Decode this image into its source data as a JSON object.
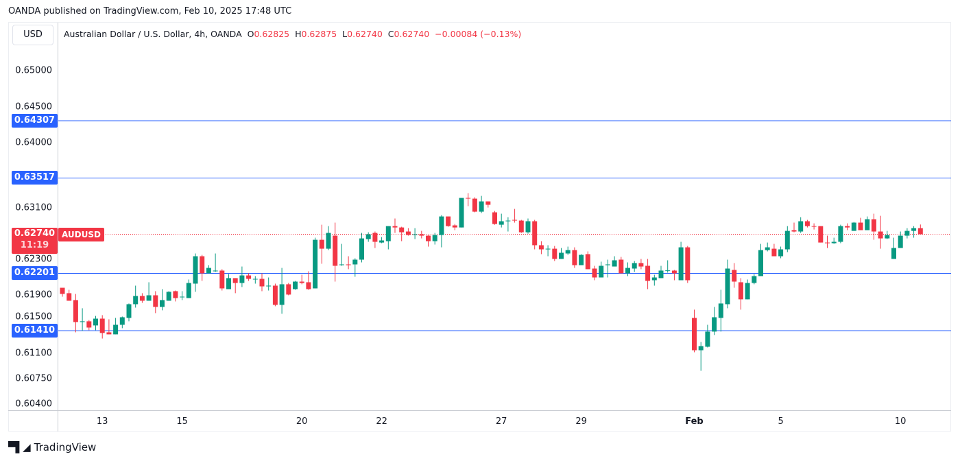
{
  "header": {
    "published": "OANDA published on TradingView.com, Feb 10, 2025 17:48 UTC"
  },
  "toolbar": {
    "currency_button": "USD"
  },
  "legend": {
    "title": "Australian Dollar / U.S. Dollar, 4h, OANDA",
    "o_label": "O",
    "o_value": "0.62825",
    "h_label": "H",
    "h_value": "0.62875",
    "l_label": "L",
    "l_value": "0.62740",
    "c_label": "C",
    "c_value": "0.62740",
    "change": "−0.00084 (−0.13%)"
  },
  "last_price": {
    "value": "0.62740",
    "countdown": "11:19",
    "symbol": "AUDUSD"
  },
  "footer": {
    "brand": "TradingView",
    "logo_text": "TV"
  },
  "colors": {
    "up": "#089981",
    "down": "#f23645",
    "level": "#2962ff",
    "last": "#f23645"
  },
  "chart_data": {
    "type": "candlestick",
    "symbol": "AUDUSD",
    "interval": "4h",
    "y_ticks": [
      "0.65000",
      "0.64500",
      "0.64000",
      "0.63100",
      "0.62300",
      "0.61900",
      "0.61500",
      "0.61100",
      "0.60750",
      "0.60400"
    ],
    "ylim": [
      0.6037,
      0.653
    ],
    "levels": [
      "0.64307",
      "0.63517",
      "0.62201",
      "0.61410"
    ],
    "x_ticks": [
      {
        "label": "13",
        "index": 6
      },
      {
        "label": "15",
        "index": 18
      },
      {
        "label": "20",
        "index": 36
      },
      {
        "label": "22",
        "index": 48
      },
      {
        "label": "27",
        "index": 66
      },
      {
        "label": "29",
        "index": 78
      },
      {
        "label": "Feb",
        "index": 95,
        "bold": true
      },
      {
        "label": "5",
        "index": 108
      },
      {
        "label": "10",
        "index": 126
      }
    ],
    "candles_ohlc": [
      [
        0.62002,
        0.62002,
        0.61879,
        0.61917
      ],
      [
        0.61927,
        0.61974,
        0.61823,
        0.61823
      ],
      [
        0.61832,
        0.61917,
        0.61387,
        0.61529
      ],
      [
        0.61529,
        0.61719,
        0.61406,
        0.61539
      ],
      [
        0.61539,
        0.61557,
        0.61416,
        0.61453
      ],
      [
        0.61482,
        0.61614,
        0.61416,
        0.61576
      ],
      [
        0.61576,
        0.61624,
        0.61301,
        0.61378
      ],
      [
        0.61387,
        0.61567,
        0.61359,
        0.61359
      ],
      [
        0.61359,
        0.61586,
        0.61359,
        0.61491
      ],
      [
        0.61491,
        0.61605,
        0.61444,
        0.61595
      ],
      [
        0.61586,
        0.61785,
        0.61539,
        0.61775
      ],
      [
        0.61775,
        0.62031,
        0.61728,
        0.61889
      ],
      [
        0.61889,
        0.61927,
        0.61794,
        0.61823
      ],
      [
        0.61823,
        0.62078,
        0.61823,
        0.61898
      ],
      [
        0.61898,
        0.61955,
        0.61652,
        0.61738
      ],
      [
        0.61738,
        0.61983,
        0.6169,
        0.61832
      ],
      [
        0.61823,
        0.61955,
        0.61823,
        0.61946
      ],
      [
        0.61955,
        0.61964,
        0.61813,
        0.6186
      ],
      [
        0.6187,
        0.61955,
        0.61832,
        0.61879
      ],
      [
        0.6186,
        0.62116,
        0.6186,
        0.62068
      ],
      [
        0.62059,
        0.62475,
        0.61946,
        0.62437
      ],
      [
        0.62437,
        0.62456,
        0.62097,
        0.62201
      ],
      [
        0.62201,
        0.62314,
        0.62201,
        0.62276
      ],
      [
        0.62229,
        0.62475,
        0.6222,
        0.62239
      ],
      [
        0.62239,
        0.62258,
        0.61964,
        0.61993
      ],
      [
        0.61983,
        0.62191,
        0.61983,
        0.62135
      ],
      [
        0.62135,
        0.62135,
        0.61927,
        0.62068
      ],
      [
        0.62068,
        0.62295,
        0.62012,
        0.62172
      ],
      [
        0.62172,
        0.62201,
        0.62097,
        0.62125
      ],
      [
        0.62116,
        0.62163,
        0.62059,
        0.62125
      ],
      [
        0.62125,
        0.62201,
        0.61955,
        0.62021
      ],
      [
        0.62021,
        0.62144,
        0.61964,
        0.62031
      ],
      [
        0.62031,
        0.62059,
        0.61747,
        0.61766
      ],
      [
        0.61766,
        0.62276,
        0.61643,
        0.6205
      ],
      [
        0.6205,
        0.62068,
        0.61898,
        0.61908
      ],
      [
        0.61983,
        0.62097,
        0.61974,
        0.62087
      ],
      [
        0.62087,
        0.62182,
        0.6205,
        0.62068
      ],
      [
        0.62078,
        0.62229,
        0.61974,
        0.61983
      ],
      [
        0.61993,
        0.62693,
        0.61993,
        0.62664
      ],
      [
        0.62664,
        0.62872,
        0.62333,
        0.62541
      ],
      [
        0.62541,
        0.62853,
        0.62522,
        0.62759
      ],
      [
        0.62721,
        0.62901,
        0.62087,
        0.62305
      ],
      [
        0.62314,
        0.62608,
        0.62305,
        0.62324
      ],
      [
        0.62324,
        0.62437,
        0.62258,
        0.62314
      ],
      [
        0.62324,
        0.62409,
        0.62154,
        0.6239
      ],
      [
        0.6239,
        0.62759,
        0.62352,
        0.62683
      ],
      [
        0.62674,
        0.62768,
        0.62636,
        0.6274
      ],
      [
        0.62759,
        0.62778,
        0.62551,
        0.62636
      ],
      [
        0.62626,
        0.62702,
        0.62617,
        0.62655
      ],
      [
        0.62645,
        0.62853,
        0.62532,
        0.62853
      ],
      [
        0.62853,
        0.62958,
        0.62759,
        0.62834
      ],
      [
        0.62834,
        0.62844,
        0.62645,
        0.62768
      ],
      [
        0.62778,
        0.62825,
        0.62721,
        0.6273
      ],
      [
        0.6273,
        0.62825,
        0.62674,
        0.6274
      ],
      [
        0.6274,
        0.62787,
        0.62683,
        0.62721
      ],
      [
        0.62721,
        0.6273,
        0.6257,
        0.62645
      ],
      [
        0.62645,
        0.62759,
        0.62598,
        0.6273
      ],
      [
        0.6273,
        0.63005,
        0.6256,
        0.62986
      ],
      [
        0.62986,
        0.62986,
        0.62844,
        0.62853
      ],
      [
        0.62863,
        0.62882,
        0.62797,
        0.62834
      ],
      [
        0.62834,
        0.63242,
        0.62834,
        0.63242
      ],
      [
        0.63242,
        0.63308,
        0.63128,
        0.63232
      ],
      [
        0.63232,
        0.63251,
        0.63043,
        0.63052
      ],
      [
        0.63052,
        0.6327,
        0.63033,
        0.63194
      ],
      [
        0.63194,
        0.63194,
        0.63109,
        0.63147
      ],
      [
        0.63043,
        0.63062,
        0.62872,
        0.62882
      ],
      [
        0.62872,
        0.63024,
        0.62834,
        0.6292
      ],
      [
        0.6292,
        0.62976,
        0.62778,
        0.62929
      ],
      [
        0.62939,
        0.6309,
        0.62901,
        0.62929
      ],
      [
        0.62929,
        0.62939,
        0.62759,
        0.62768
      ],
      [
        0.62768,
        0.62958,
        0.62749,
        0.6292
      ],
      [
        0.6292,
        0.62939,
        0.62532,
        0.62589
      ],
      [
        0.62589,
        0.62645,
        0.62466,
        0.62532
      ],
      [
        0.62532,
        0.62589,
        0.62437,
        0.62541
      ],
      [
        0.62541,
        0.62579,
        0.62371,
        0.624
      ],
      [
        0.624,
        0.62551,
        0.624,
        0.62485
      ],
      [
        0.62475,
        0.6257,
        0.62456,
        0.62522
      ],
      [
        0.62522,
        0.6256,
        0.62276,
        0.62314
      ],
      [
        0.62314,
        0.62466,
        0.62314,
        0.62456
      ],
      [
        0.62466,
        0.62504,
        0.62258,
        0.62258
      ],
      [
        0.62267,
        0.62305,
        0.62106,
        0.62144
      ],
      [
        0.62144,
        0.62362,
        0.62144,
        0.62305
      ],
      [
        0.62314,
        0.6239,
        0.62144,
        0.62324
      ],
      [
        0.62295,
        0.62437,
        0.62295,
        0.62381
      ],
      [
        0.6239,
        0.62428,
        0.62201,
        0.62201
      ],
      [
        0.62201,
        0.62352,
        0.62163,
        0.62276
      ],
      [
        0.62267,
        0.62371,
        0.6222,
        0.62343
      ],
      [
        0.62343,
        0.624,
        0.62258,
        0.62295
      ],
      [
        0.62305,
        0.624,
        0.61983,
        0.62097
      ],
      [
        0.62106,
        0.62182,
        0.62031,
        0.62144
      ],
      [
        0.62135,
        0.62305,
        0.62135,
        0.62239
      ],
      [
        0.62239,
        0.62381,
        0.6221,
        0.62242
      ],
      [
        0.62239,
        0.62248,
        0.62106,
        0.62201
      ],
      [
        0.62106,
        0.62636,
        0.62106,
        0.6256
      ],
      [
        0.6256,
        0.62579,
        0.62068,
        0.62106
      ],
      [
        0.61586,
        0.617,
        0.61112,
        0.6114
      ],
      [
        0.6114,
        0.61254,
        0.60856,
        0.61197
      ],
      [
        0.61188,
        0.61491,
        0.61178,
        0.61397
      ],
      [
        0.61397,
        0.61738,
        0.6135,
        0.61595
      ],
      [
        0.61586,
        0.61974,
        0.61397,
        0.61785
      ],
      [
        0.61775,
        0.6239,
        0.61719,
        0.62267
      ],
      [
        0.62248,
        0.62343,
        0.62002,
        0.62087
      ],
      [
        0.62078,
        0.62135,
        0.617,
        0.61842
      ],
      [
        0.61842,
        0.62116,
        0.61842,
        0.62068
      ],
      [
        0.62068,
        0.62191,
        0.6205,
        0.62163
      ],
      [
        0.62163,
        0.62608,
        0.62163,
        0.62522
      ],
      [
        0.62522,
        0.62626,
        0.62504,
        0.6256
      ],
      [
        0.62541,
        0.62608,
        0.62437,
        0.62437
      ],
      [
        0.62437,
        0.6257,
        0.62409,
        0.62532
      ],
      [
        0.62532,
        0.62853,
        0.62494,
        0.62787
      ],
      [
        0.62797,
        0.62901,
        0.62768,
        0.62778
      ],
      [
        0.62778,
        0.62976,
        0.62759,
        0.6292
      ],
      [
        0.6292,
        0.62939,
        0.62834,
        0.62853
      ],
      [
        0.62853,
        0.62891,
        0.62806,
        0.62844
      ],
      [
        0.62853,
        0.62853,
        0.62626,
        0.62626
      ],
      [
        0.62626,
        0.62721,
        0.62551,
        0.62617
      ],
      [
        0.62617,
        0.62693,
        0.62608,
        0.62636
      ],
      [
        0.62636,
        0.62872,
        0.62617,
        0.62853
      ],
      [
        0.62853,
        0.62891,
        0.62797,
        0.62834
      ],
      [
        0.62787,
        0.6291,
        0.62787,
        0.62901
      ],
      [
        0.62901,
        0.62967,
        0.62797,
        0.62797
      ],
      [
        0.62797,
        0.62986,
        0.62797,
        0.62948
      ],
      [
        0.62948,
        0.63024,
        0.62664,
        0.62778
      ],
      [
        0.62778,
        0.62995,
        0.62541,
        0.62683
      ],
      [
        0.62683,
        0.62787,
        0.62674,
        0.6273
      ],
      [
        0.624,
        0.62693,
        0.624,
        0.62551
      ],
      [
        0.62551,
        0.62778,
        0.62551,
        0.62721
      ],
      [
        0.62721,
        0.62825,
        0.62683,
        0.62787
      ],
      [
        0.62787,
        0.62853,
        0.62693,
        0.62825
      ],
      [
        0.62825,
        0.62875,
        0.6274,
        0.6274
      ]
    ]
  }
}
